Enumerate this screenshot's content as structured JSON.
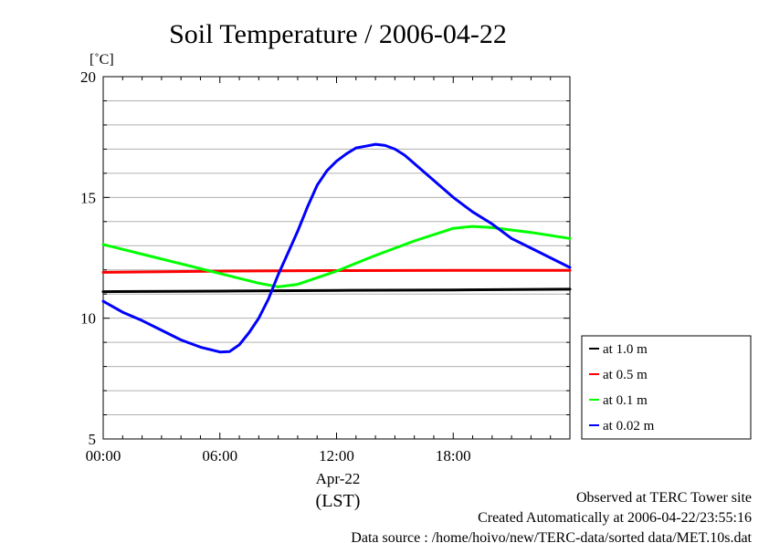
{
  "chart_data": {
    "type": "line",
    "title": "Soil Temperature / 2006-04-22",
    "ylabel": "[˚C]",
    "x_unit": "hours since 00:00 (LST)",
    "xlim": [
      0,
      24
    ],
    "ylim": [
      5,
      20
    ],
    "yticks": [
      5,
      10,
      15,
      20
    ],
    "ytick_labels": [
      "5",
      "10",
      "15",
      "20"
    ],
    "xticks": [
      0,
      6,
      12,
      18
    ],
    "xtick_labels": [
      "00:00",
      "06:00",
      "12:00",
      "18:00"
    ],
    "date_label": "Apr-22",
    "tz_label": "(LST)",
    "grid": "horizontal",
    "legend_position": "right",
    "series": [
      {
        "name": "at 1.0 m",
        "color": "#000000",
        "x": [
          0,
          6,
          12,
          18,
          24
        ],
        "y": [
          11.1,
          11.12,
          11.15,
          11.17,
          11.2
        ]
      },
      {
        "name": "at 0.5 m",
        "color": "#ff0000",
        "x": [
          0,
          6,
          12,
          18,
          24
        ],
        "y": [
          11.9,
          11.95,
          11.97,
          11.98,
          11.98
        ]
      },
      {
        "name": "at 0.1 m",
        "color": "#00ff00",
        "x": [
          0,
          2,
          4,
          6,
          8,
          9,
          10,
          12,
          14,
          16,
          18,
          19,
          20,
          22,
          24
        ],
        "y": [
          13.05,
          12.65,
          12.25,
          11.85,
          11.45,
          11.3,
          11.4,
          11.95,
          12.6,
          13.2,
          13.72,
          13.8,
          13.75,
          13.55,
          13.3
        ]
      },
      {
        "name": "at 0.02 m",
        "color": "#0000ff",
        "x": [
          0,
          1,
          2,
          3,
          4,
          5,
          6,
          6.5,
          7,
          7.5,
          8,
          8.5,
          9,
          9.5,
          10,
          10.5,
          11,
          11.5,
          12,
          12.5,
          13,
          13.5,
          14,
          14.5,
          15,
          15.5,
          16,
          17,
          18,
          19,
          20,
          21,
          22,
          23,
          24
        ],
        "y": [
          10.7,
          10.25,
          9.9,
          9.5,
          9.1,
          8.8,
          8.6,
          8.62,
          8.9,
          9.4,
          10.0,
          10.8,
          11.8,
          12.7,
          13.6,
          14.6,
          15.5,
          16.1,
          16.5,
          16.8,
          17.05,
          17.12,
          17.2,
          17.15,
          17.0,
          16.75,
          16.4,
          15.7,
          15.0,
          14.4,
          13.9,
          13.3,
          12.9,
          12.5,
          12.1
        ]
      }
    ]
  },
  "footer": {
    "line1": "Observed at TERC Tower site",
    "line2": "Created Automatically at 2006-04-22/23:55:16",
    "line3": "Data source : /home/hoivo/new/TERC-data/sorted  data/MET.10s.dat"
  }
}
